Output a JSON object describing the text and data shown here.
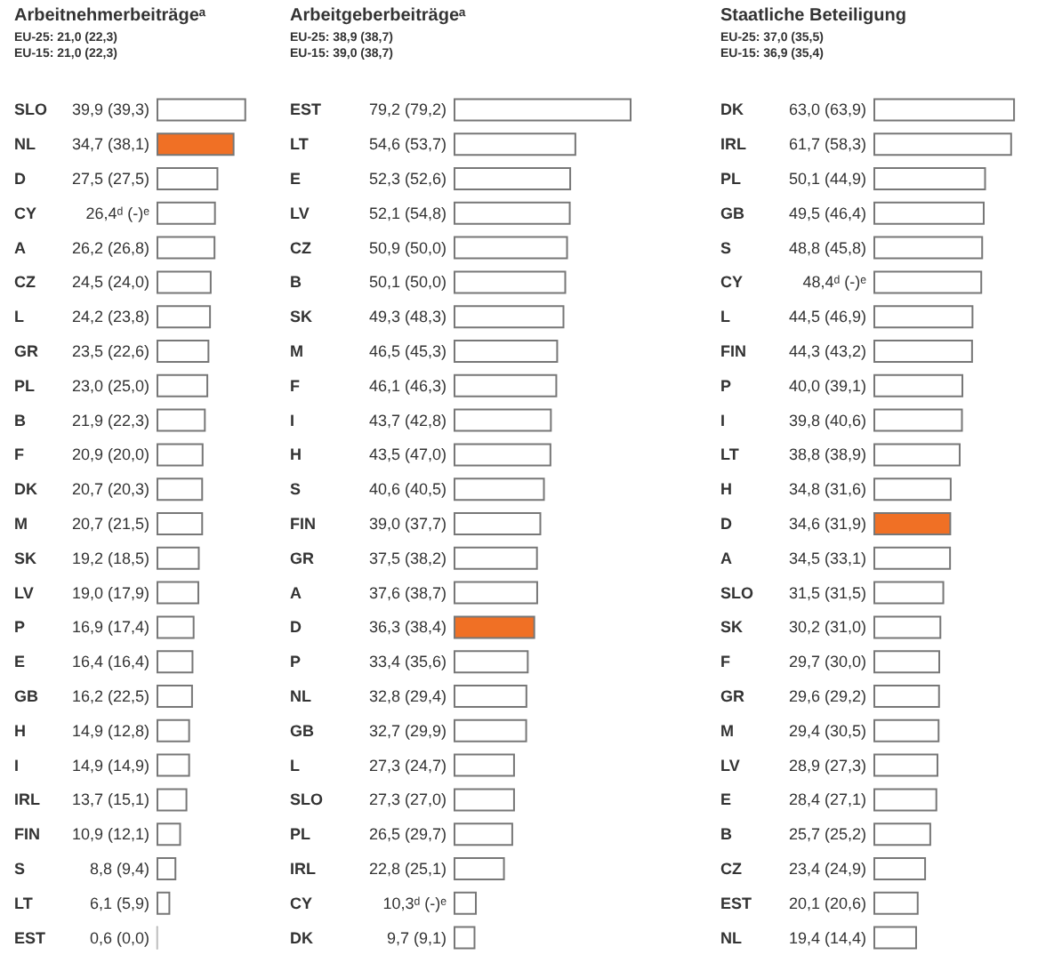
{
  "chart_data": [
    {
      "type": "bar",
      "orientation": "horizontal",
      "title": "Arbeitnehmerbeiträgeᵃ",
      "subtitle": "EU-25: 21,0 (22,3)\nEU-15: 21,0 (22,3)",
      "categories": [
        "SLO",
        "NL",
        "D",
        "CY",
        "A",
        "CZ",
        "L",
        "GR",
        "PL",
        "B",
        "F",
        "DK",
        "M",
        "SK",
        "LV",
        "P",
        "E",
        "GB",
        "H",
        "I",
        "IRL",
        "FIN",
        "S",
        "LT",
        "EST"
      ],
      "values": [
        39.9,
        34.7,
        27.5,
        26.4,
        26.2,
        24.5,
        24.2,
        23.5,
        23.0,
        21.9,
        20.9,
        20.7,
        20.7,
        19.2,
        19.0,
        16.9,
        16.4,
        16.2,
        14.9,
        14.9,
        13.7,
        10.9,
        8.8,
        6.1,
        0.6
      ],
      "value_labels": [
        "39,9 (39,3)",
        "34,7 (38,1)",
        "27,5 (27,5)",
        "26,4ᵈ (-)ᵉ",
        "26,2 (26,8)",
        "24,5 (24,0)",
        "24,2 (23,8)",
        "23,5 (22,6)",
        "23,0 (25,0)",
        "21,9 (22,3)",
        "20,9 (20,0)",
        "20,7 (20,3)",
        "20,7 (21,5)",
        "19,2 (18,5)",
        "19,0 (17,9)",
        "16,9 (17,4)",
        "16,4 (16,4)",
        "16,2 (22,5)",
        "14,9 (12,8)",
        "14,9 (14,9)",
        "13,7 (15,1)",
        "10,9 (12,1)",
        "8,8 (9,4)",
        "6,1 (5,9)",
        "0,6 (0,0)"
      ],
      "colors": [
        "#ffffff",
        "#f07025",
        "#ffffff",
        "#ffffff",
        "#ffffff",
        "#ffffff",
        "#ffffff",
        "#ffffff",
        "#ffffff",
        "#ffffff",
        "#ffffff",
        "#ffffff",
        "#ffffff",
        "#ffffff",
        "#ffffff",
        "#ffffff",
        "#ffffff",
        "#ffffff",
        "#ffffff",
        "#ffffff",
        "#ffffff",
        "#ffffff",
        "#ffffff",
        "#ffffff",
        "#ffffff"
      ]
    },
    {
      "type": "bar",
      "orientation": "horizontal",
      "title": "Arbeitgeberbeiträgeᵃ",
      "subtitle": "EU-25: 38,9 (38,7)\nEU-15: 39,0 (38,7)",
      "categories": [
        "EST",
        "LT",
        "E",
        "LV",
        "CZ",
        "B",
        "SK",
        "M",
        "F",
        "I",
        "H",
        "S",
        "FIN",
        "GR",
        "A",
        "D",
        "P",
        "NL",
        "GB",
        "L",
        "SLO",
        "PL",
        "IRL",
        "CY",
        "DK"
      ],
      "values": [
        79.2,
        54.6,
        52.3,
        52.1,
        50.9,
        50.1,
        49.3,
        46.5,
        46.1,
        43.7,
        43.5,
        40.6,
        39.0,
        37.5,
        37.6,
        36.3,
        33.4,
        32.8,
        32.7,
        27.3,
        27.3,
        26.5,
        22.8,
        10.3,
        9.7
      ],
      "value_labels": [
        "79,2 (79,2)",
        "54,6 (53,7)",
        "52,3 (52,6)",
        "52,1 (54,8)",
        "50,9 (50,0)",
        "50,1 (50,0)",
        "49,3 (48,3)",
        "46,5 (45,3)",
        "46,1 (46,3)",
        "43,7 (42,8)",
        "43,5 (47,0)",
        "40,6 (40,5)",
        "39,0 (37,7)",
        "37,5 (38,2)",
        "37,6 (38,7)",
        "36,3 (38,4)",
        "33,4 (35,6)",
        "32,8 (29,4)",
        "32,7 (29,9)",
        "27,3 (24,7)",
        "27,3 (27,0)",
        "26,5 (29,7)",
        "22,8 (25,1)",
        "10,3ᵈ (-)ᵉ",
        "9,7 (9,1)"
      ],
      "colors": [
        "#ffffff",
        "#ffffff",
        "#ffffff",
        "#ffffff",
        "#ffffff",
        "#ffffff",
        "#ffffff",
        "#ffffff",
        "#ffffff",
        "#ffffff",
        "#ffffff",
        "#ffffff",
        "#ffffff",
        "#ffffff",
        "#ffffff",
        "#f07025",
        "#ffffff",
        "#ffffff",
        "#ffffff",
        "#ffffff",
        "#ffffff",
        "#ffffff",
        "#ffffff",
        "#ffffff",
        "#ffffff"
      ]
    },
    {
      "type": "bar",
      "orientation": "horizontal",
      "title": "Staatliche Beteiligung",
      "subtitle": "EU-25: 37,0 (35,5)\nEU-15: 36,9 (35,4)",
      "categories": [
        "DK",
        "IRL",
        "PL",
        "GB",
        "S",
        "CY",
        "L",
        "FIN",
        "P",
        "I",
        "LT",
        "H",
        "D",
        "A",
        "SLO",
        "SK",
        "F",
        "GR",
        "M",
        "LV",
        "E",
        "B",
        "CZ",
        "EST",
        "NL"
      ],
      "values": [
        63.0,
        61.7,
        50.1,
        49.5,
        48.8,
        48.4,
        44.5,
        44.3,
        40.0,
        39.8,
        38.8,
        34.8,
        34.6,
        34.5,
        31.5,
        30.2,
        29.7,
        29.6,
        29.4,
        28.9,
        28.4,
        25.7,
        23.4,
        20.1,
        19.4
      ],
      "value_labels": [
        "63,0 (63,9)",
        "61,7 (58,3)",
        "50,1 (44,9)",
        "49,5 (46,4)",
        "48,8 (45,8)",
        "48,4ᵈ (-)ᵉ",
        "44,5 (46,9)",
        "44,3 (43,2)",
        "40,0 (39,1)",
        "39,8 (40,6)",
        "38,8 (38,9)",
        "34,8 (31,6)",
        "34,6 (31,9)",
        "34,5 (33,1)",
        "31,5 (31,5)",
        "30,2 (31,0)",
        "29,7 (30,0)",
        "29,6 (29,2)",
        "29,4 (30,5)",
        "28,9 (27,3)",
        "28,4 (27,1)",
        "25,7 (25,2)",
        "23,4 (24,9)",
        "20,1 (20,6)",
        "19,4 (14,4)"
      ],
      "colors": [
        "#ffffff",
        "#ffffff",
        "#ffffff",
        "#ffffff",
        "#ffffff",
        "#ffffff",
        "#ffffff",
        "#ffffff",
        "#ffffff",
        "#ffffff",
        "#ffffff",
        "#ffffff",
        "#f07025",
        "#ffffff",
        "#ffffff",
        "#ffffff",
        "#ffffff",
        "#ffffff",
        "#ffffff",
        "#ffffff",
        "#ffffff",
        "#ffffff",
        "#ffffff",
        "#ffffff",
        "#ffffff"
      ]
    }
  ]
}
